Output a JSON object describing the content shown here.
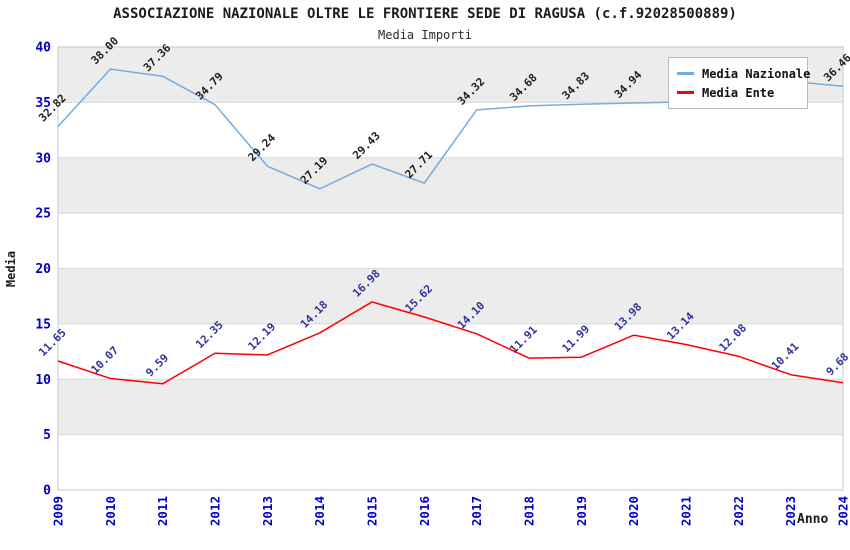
{
  "header": {
    "title": "ASSOCIAZIONE NAZIONALE OLTRE LE FRONTIERE SEDE DI RAGUSA (c.f.92028500889)",
    "subtitle": "Media Importi"
  },
  "axes": {
    "y_label": "Media",
    "x_label": "Anno",
    "y_ticks": [
      0,
      5,
      10,
      15,
      20,
      25,
      30,
      35,
      40
    ],
    "x_ticks": [
      "2009",
      "2010",
      "2011",
      "2012",
      "2013",
      "2014",
      "2015",
      "2016",
      "2017",
      "2018",
      "2019",
      "2020",
      "2021",
      "2022",
      "2023",
      "2024"
    ]
  },
  "legend": {
    "items": [
      {
        "name": "Media Nazionale",
        "label": "Media Nazionale",
        "color": "#76abdf"
      },
      {
        "name": "Media Ente",
        "label": "Media Ente",
        "color": "#ff0000"
      }
    ]
  },
  "colors": {
    "band_gray": "#ececec",
    "gridline": "#d9d9d9",
    "plot_border": "#c8c8c8",
    "tick_text_blue": "#0000cc",
    "blue_series_line": "#76abdf",
    "red_series_line": "#ff0000",
    "blue_series_label_text": "#202020",
    "red_series_label_text": "#333399"
  },
  "chart_data": {
    "type": "line",
    "title": "ASSOCIAZIONE NAZIONALE OLTRE LE FRONTIERE SEDE DI RAGUSA (c.f.92028500889)",
    "subtitle": "Media Importi",
    "xlabel": "Anno",
    "ylabel": "Media",
    "ylim": [
      0,
      40
    ],
    "grid": "horizontal-bands-every-5",
    "legend_position": "top-right-inside",
    "x": [
      2009,
      2010,
      2011,
      2012,
      2013,
      2014,
      2015,
      2016,
      2017,
      2018,
      2019,
      2020,
      2021,
      2022,
      2023,
      2024
    ],
    "series": [
      {
        "name": "Media Nazionale",
        "color": "#76abdf",
        "label_color": "#202020",
        "values": [
          32.82,
          38.0,
          37.36,
          34.79,
          29.24,
          27.19,
          29.43,
          27.71,
          34.32,
          34.68,
          34.83,
          34.94,
          35.05,
          35.2,
          36.9,
          36.46
        ],
        "labels": [
          "32.82",
          "38.00",
          "37.36",
          "34.79",
          "29.24",
          "27.19",
          "29.43",
          "27.71",
          "34.32",
          "34.68",
          "34.83",
          "34.94",
          "",
          "",
          "",
          "36.46"
        ],
        "note": "labels for 2021-2023 hidden behind legend box; their values are estimated from line position"
      },
      {
        "name": "Media Ente",
        "color": "#ff0000",
        "label_color": "#333399",
        "values": [
          11.65,
          10.07,
          9.59,
          12.35,
          12.19,
          14.18,
          16.98,
          15.62,
          14.1,
          11.91,
          11.99,
          13.98,
          13.14,
          12.08,
          10.41,
          9.68
        ],
        "labels": [
          "11.65",
          "10.07",
          "9.59",
          "12.35",
          "12.19",
          "14.18",
          "16.98",
          "15.62",
          "14.10",
          "11.91",
          "11.99",
          "13.98",
          "13.14",
          "12.08",
          "10.41",
          "9.68"
        ]
      }
    ]
  }
}
